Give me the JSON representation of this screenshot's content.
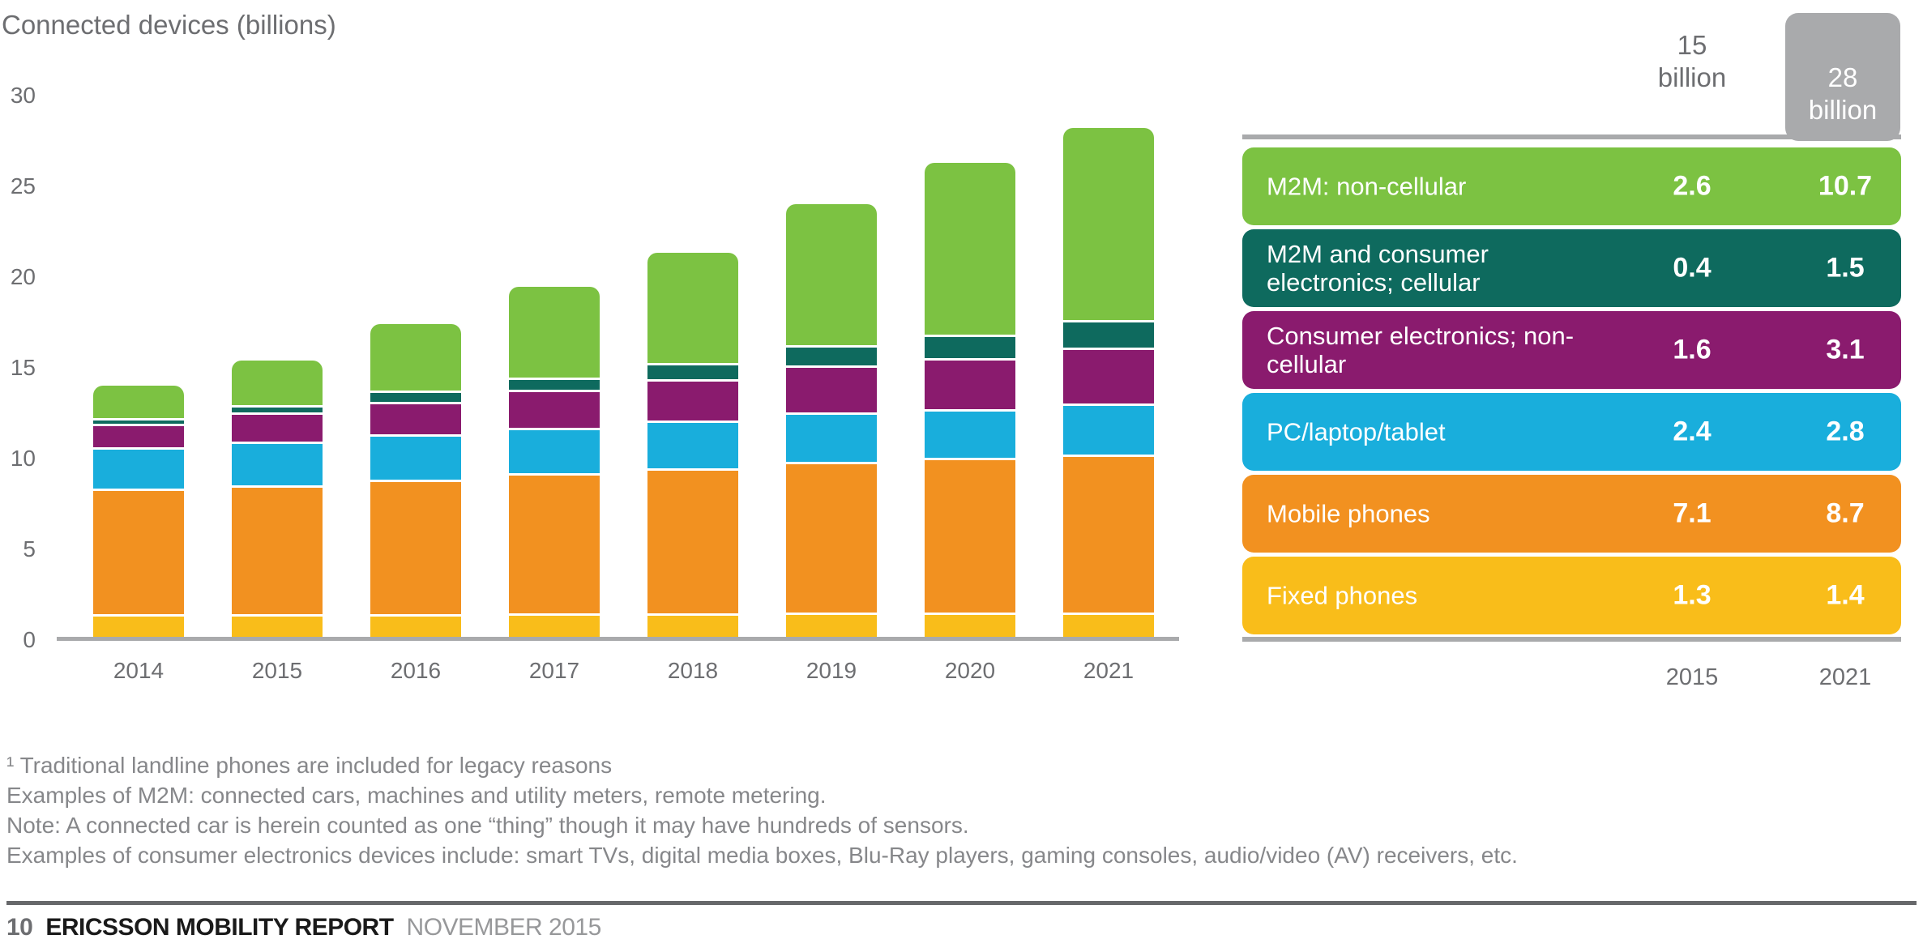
{
  "title": "Connected devices (billions)",
  "chart_data": {
    "type": "bar",
    "stacked": true,
    "title": "Connected devices (billions)",
    "categories": [
      "2014",
      "2015",
      "2016",
      "2017",
      "2018",
      "2019",
      "2020",
      "2021"
    ],
    "series": [
      {
        "name": "Fixed phones",
        "color": "#f9bd1a",
        "values": [
          1.3,
          1.3,
          1.3,
          1.35,
          1.35,
          1.4,
          1.4,
          1.4
        ]
      },
      {
        "name": "Mobile phones",
        "color": "#f29120",
        "values": [
          6.9,
          7.1,
          7.4,
          7.7,
          8.0,
          8.3,
          8.5,
          8.7
        ]
      },
      {
        "name": "PC/laptop/tablet",
        "color": "#19aedc",
        "values": [
          2.3,
          2.4,
          2.5,
          2.5,
          2.6,
          2.7,
          2.7,
          2.8
        ]
      },
      {
        "name": "Consumer electronics; non-cellular",
        "color": "#8a1b6e",
        "values": [
          1.3,
          1.6,
          1.8,
          2.1,
          2.3,
          2.6,
          2.8,
          3.1
        ]
      },
      {
        "name": "M2M and consumer electronics; cellular",
        "color": "#0e6a5e",
        "values": [
          0.3,
          0.4,
          0.6,
          0.7,
          0.9,
          1.1,
          1.3,
          1.5
        ]
      },
      {
        "name": "M2M: non-cellular",
        "color": "#7cc242",
        "values": [
          1.9,
          2.6,
          3.8,
          5.1,
          6.2,
          7.9,
          9.6,
          10.7
        ]
      }
    ],
    "totals_note": "2015 total = 15.4 (15 billion); 2021 total = 28.2 (28 billion)",
    "yticks": [
      0,
      5,
      10,
      15,
      20,
      25,
      30
    ],
    "ylim": [
      0,
      30
    ],
    "grid": false,
    "axis_color": "#a9aaac",
    "legend_position": "right-table"
  },
  "legend": {
    "header": {
      "col_2015_value": "15",
      "col_2015_unit": "billion",
      "col_2021_value": "28",
      "col_2021_unit": "billion",
      "highlight_color": "#a9aaac"
    },
    "rows": [
      {
        "label": "M2M: non-cellular",
        "color": "#7cc242",
        "v2015": "2.6",
        "v2021": "10.7"
      },
      {
        "label": "M2M and consumer electronics; cellular",
        "color": "#0e6a5e",
        "v2015": "0.4",
        "v2021": "1.5"
      },
      {
        "label": "Consumer electronics; non-cellular",
        "color": "#8a1b6e",
        "v2015": "1.6",
        "v2021": "3.1"
      },
      {
        "label": "PC/laptop/tablet",
        "color": "#19aedc",
        "v2015": "2.4",
        "v2021": "2.8"
      },
      {
        "label": "Mobile phones",
        "color": "#f29120",
        "v2015": "7.1",
        "v2021": "8.7"
      },
      {
        "label": "Fixed phones",
        "color": "#f9bd1a",
        "v2015": "1.3",
        "v2021": "1.4"
      }
    ],
    "year_2015": "2015",
    "year_2021": "2021"
  },
  "footnotes": [
    "¹ Traditional landline phones are included for legacy reasons",
    "Examples of M2M: connected cars, machines and utility meters, remote metering.",
    "Note: A connected car is herein counted as one “thing” though it may have hundreds of sensors.",
    "Examples of consumer electronics devices include: smart TVs, digital media boxes, Blu-Ray players, gaming consoles, audio/video (AV) receivers, etc."
  ],
  "footer": {
    "page": "10",
    "title": "ERICSSON MOBILITY REPORT",
    "date": "NOVEMBER 2015"
  }
}
